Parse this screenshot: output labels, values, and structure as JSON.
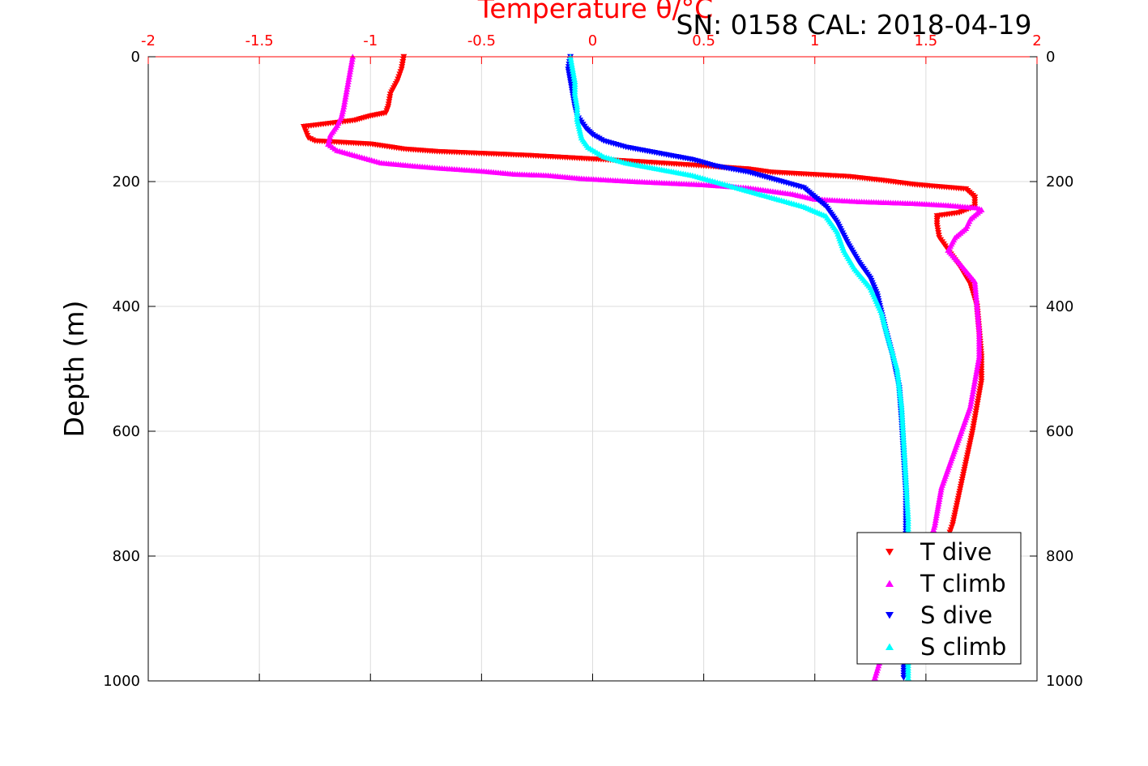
{
  "header": {
    "top_title": "Temperature θ/°C",
    "annotation": "SN: 0158  CAL: 2018-04-19"
  },
  "chart_data": {
    "type": "scatter",
    "title": "",
    "xlabel": "Temperature θ/°C",
    "ylabel": "Depth (m)",
    "xlim": [
      -2,
      2
    ],
    "ylim": [
      0,
      1000
    ],
    "y_reversed": true,
    "grid": true,
    "legend_position": "bottom-right",
    "x_ticks": [
      "-2",
      "-1.5",
      "-1",
      "-0.5",
      "0",
      "0.5",
      "1",
      "1.5",
      "2"
    ],
    "y_ticks": [
      "0",
      "200",
      "400",
      "600",
      "800",
      "1000"
    ],
    "series": [
      {
        "name": "T dive",
        "color": "#ff0000",
        "marker": "triangle-down",
        "points": [
          [
            -0.85,
            0
          ],
          [
            -0.86,
            20
          ],
          [
            -0.88,
            40
          ],
          [
            -0.91,
            60
          ],
          [
            -0.92,
            80
          ],
          [
            -0.93,
            90
          ],
          [
            -1.0,
            95
          ],
          [
            -1.07,
            102
          ],
          [
            -1.3,
            112
          ],
          [
            -1.28,
            130
          ],
          [
            -1.25,
            135
          ],
          [
            -1.0,
            140
          ],
          [
            -0.85,
            148
          ],
          [
            -0.7,
            152
          ],
          [
            -0.5,
            155
          ],
          [
            -0.3,
            158
          ],
          [
            -0.2,
            160
          ],
          [
            0.2,
            168
          ],
          [
            0.5,
            175
          ],
          [
            0.7,
            180
          ],
          [
            0.8,
            185
          ],
          [
            0.95,
            188
          ],
          [
            1.15,
            192
          ],
          [
            1.3,
            198
          ],
          [
            1.45,
            205
          ],
          [
            1.55,
            208
          ],
          [
            1.68,
            212
          ],
          [
            1.72,
            225
          ],
          [
            1.72,
            240
          ],
          [
            1.65,
            250
          ],
          [
            1.55,
            255
          ],
          [
            1.55,
            270
          ],
          [
            1.56,
            290
          ],
          [
            1.6,
            310
          ],
          [
            1.65,
            335
          ],
          [
            1.7,
            365
          ],
          [
            1.73,
            400
          ],
          [
            1.74,
            440
          ],
          [
            1.75,
            480
          ],
          [
            1.75,
            520
          ],
          [
            1.73,
            560
          ],
          [
            1.71,
            600
          ],
          [
            1.68,
            650
          ],
          [
            1.65,
            700
          ],
          [
            1.62,
            750
          ],
          [
            1.6,
            770
          ]
        ]
      },
      {
        "name": "T climb",
        "color": "#ff00ff",
        "marker": "triangle-up",
        "points": [
          [
            -1.08,
            0
          ],
          [
            -1.09,
            20
          ],
          [
            -1.1,
            40
          ],
          [
            -1.11,
            60
          ],
          [
            -1.12,
            80
          ],
          [
            -1.13,
            95
          ],
          [
            -1.15,
            110
          ],
          [
            -1.18,
            125
          ],
          [
            -1.19,
            140
          ],
          [
            -1.15,
            150
          ],
          [
            -1.05,
            160
          ],
          [
            -0.95,
            170
          ],
          [
            -0.8,
            175
          ],
          [
            -0.7,
            178
          ],
          [
            -0.5,
            183
          ],
          [
            -0.35,
            188
          ],
          [
            -0.2,
            190
          ],
          [
            -0.05,
            195
          ],
          [
            0.2,
            200
          ],
          [
            0.5,
            205
          ],
          [
            0.7,
            210
          ],
          [
            0.9,
            220
          ],
          [
            1.0,
            228
          ],
          [
            1.2,
            232
          ],
          [
            1.45,
            235
          ],
          [
            1.6,
            238
          ],
          [
            1.73,
            242
          ],
          [
            1.75,
            245
          ],
          [
            1.7,
            260
          ],
          [
            1.68,
            275
          ],
          [
            1.63,
            290
          ],
          [
            1.6,
            310
          ],
          [
            1.65,
            330
          ],
          [
            1.72,
            360
          ],
          [
            1.73,
            400
          ],
          [
            1.74,
            440
          ],
          [
            1.74,
            480
          ],
          [
            1.72,
            520
          ],
          [
            1.7,
            560
          ],
          [
            1.66,
            600
          ],
          [
            1.62,
            640
          ],
          [
            1.57,
            690
          ],
          [
            1.54,
            750
          ],
          [
            1.5,
            800
          ],
          [
            1.45,
            860
          ],
          [
            1.38,
            910
          ],
          [
            1.3,
            960
          ],
          [
            1.27,
            995
          ]
        ]
      },
      {
        "name": "S dive",
        "color": "#0000ff",
        "marker": "triangle-down",
        "points": [
          [
            -0.1,
            0
          ],
          [
            -0.11,
            20
          ],
          [
            -0.1,
            40
          ],
          [
            -0.09,
            60
          ],
          [
            -0.08,
            80
          ],
          [
            -0.07,
            95
          ],
          [
            -0.05,
            105
          ],
          [
            -0.03,
            115
          ],
          [
            0.0,
            125
          ],
          [
            0.05,
            135
          ],
          [
            0.15,
            145
          ],
          [
            0.3,
            155
          ],
          [
            0.45,
            165
          ],
          [
            0.55,
            175
          ],
          [
            0.7,
            185
          ],
          [
            0.85,
            200
          ],
          [
            0.95,
            210
          ],
          [
            1.0,
            225
          ],
          [
            1.05,
            240
          ],
          [
            1.1,
            265
          ],
          [
            1.15,
            300
          ],
          [
            1.2,
            330
          ],
          [
            1.25,
            355
          ],
          [
            1.28,
            380
          ],
          [
            1.3,
            410
          ],
          [
            1.32,
            440
          ],
          [
            1.35,
            480
          ],
          [
            1.38,
            530
          ],
          [
            1.39,
            580
          ],
          [
            1.4,
            640
          ],
          [
            1.41,
            700
          ],
          [
            1.41,
            760
          ],
          [
            1.41,
            820
          ],
          [
            1.41,
            880
          ],
          [
            1.4,
            940
          ],
          [
            1.4,
            995
          ]
        ]
      },
      {
        "name": "S climb",
        "color": "#00ffff",
        "marker": "triangle-up",
        "points": [
          [
            -0.1,
            0
          ],
          [
            -0.09,
            20
          ],
          [
            -0.08,
            40
          ],
          [
            -0.08,
            60
          ],
          [
            -0.07,
            80
          ],
          [
            -0.07,
            100
          ],
          [
            -0.06,
            115
          ],
          [
            -0.05,
            130
          ],
          [
            -0.02,
            145
          ],
          [
            0.05,
            160
          ],
          [
            0.15,
            170
          ],
          [
            0.3,
            180
          ],
          [
            0.45,
            190
          ],
          [
            0.55,
            200
          ],
          [
            0.65,
            210
          ],
          [
            0.75,
            220
          ],
          [
            0.85,
            230
          ],
          [
            0.95,
            240
          ],
          [
            1.05,
            255
          ],
          [
            1.1,
            280
          ],
          [
            1.13,
            310
          ],
          [
            1.18,
            340
          ],
          [
            1.25,
            370
          ],
          [
            1.3,
            410
          ],
          [
            1.33,
            450
          ],
          [
            1.37,
            500
          ],
          [
            1.39,
            560
          ],
          [
            1.4,
            620
          ],
          [
            1.41,
            680
          ],
          [
            1.42,
            740
          ],
          [
            1.42,
            800
          ],
          [
            1.42,
            860
          ],
          [
            1.42,
            920
          ],
          [
            1.42,
            995
          ]
        ]
      }
    ]
  }
}
